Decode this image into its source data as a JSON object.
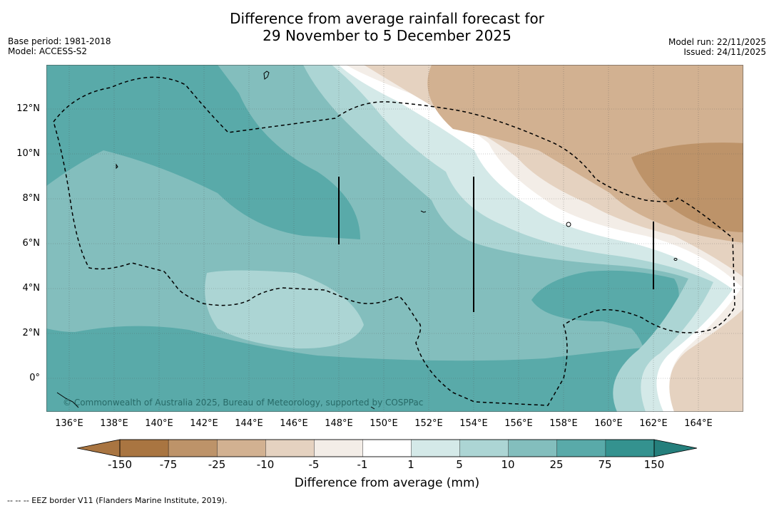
{
  "title_line1": "Difference from average rainfall forecast for",
  "title_line2": "29 November to 5 December 2025",
  "base_period": "Base period: 1981-2018",
  "model": "Model: ACCESS-S2",
  "model_run": "Model run: 22/11/2025",
  "issued": "Issued: 24/11/2025",
  "copyright": "© Commonwealth of Australia 2025, Bureau of Meteorology, supported by COSPPac",
  "x_ticks": [
    "136°E",
    "138°E",
    "140°E",
    "142°E",
    "144°E",
    "146°E",
    "148°E",
    "150°E",
    "152°E",
    "154°E",
    "156°E",
    "158°E",
    "160°E",
    "162°E",
    "164°E"
  ],
  "y_ticks": [
    "12°N",
    "10°N",
    "8°N",
    "6°N",
    "4°N",
    "2°N",
    "0°"
  ],
  "colorbar": {
    "ticks": [
      "-150",
      "-75",
      "-25",
      "-10",
      "-5",
      "-1",
      "1",
      "5",
      "10",
      "25",
      "75",
      "150"
    ],
    "colors": [
      "#a97541",
      "#bd9369",
      "#d2b191",
      "#e5d2c0",
      "#f3ede7",
      "#ffffff",
      "#d4e9e8",
      "#acd5d4",
      "#83bebd",
      "#59aaa9",
      "#34928f",
      "#257f7c"
    ],
    "label": "Difference from average (mm)"
  },
  "legend_footer": "--  --  -- EEZ border V11 (Flanders Marine Institute, 2019).",
  "map_colors": {
    "teal_deep": "#59aaa9",
    "teal_mid": "#83bebd",
    "teal_light": "#acd5d4",
    "teal_pale": "#d4e9e8",
    "white": "#ffffff",
    "tan_pale": "#f3ede7",
    "tan_light": "#e5d2c0",
    "tan_mid": "#d2b191",
    "tan_dark": "#bd9369"
  }
}
